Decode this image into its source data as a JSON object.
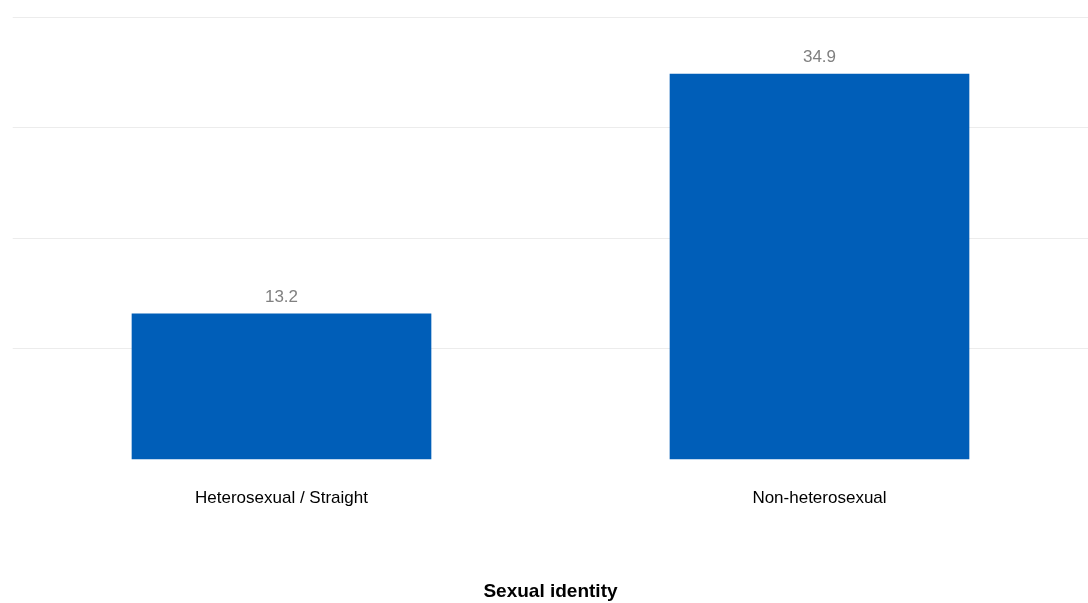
{
  "chart_data": {
    "type": "bar",
    "xlabel": "Sexual identity",
    "categories": [
      "Heterosexual / Straight",
      "Non-heterosexual"
    ],
    "values": [
      13.2,
      34.9
    ],
    "color": "#005eb8",
    "data_labels": true,
    "grid": "y",
    "tick_labels": "x"
  }
}
